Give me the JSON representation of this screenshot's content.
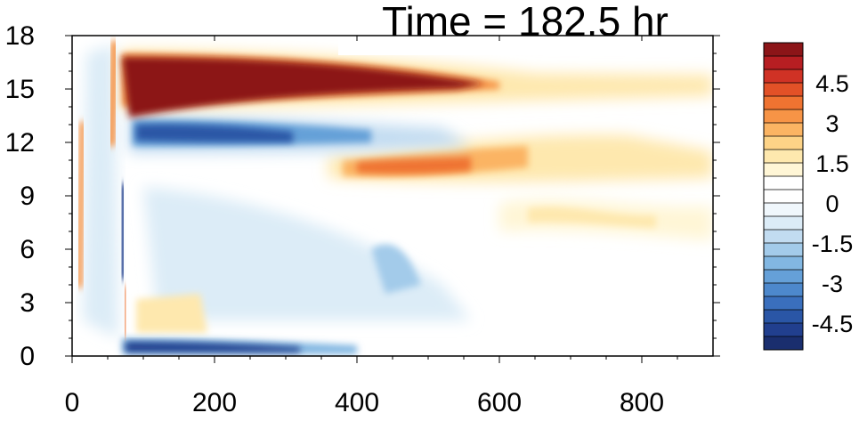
{
  "chart_data": {
    "type": "heatmap",
    "title": "Time = 182.5 hr",
    "xlabel": "",
    "ylabel": "",
    "xlim": [
      0,
      900
    ],
    "ylim": [
      0,
      18
    ],
    "x_ticks": [
      0,
      200,
      400,
      600,
      800
    ],
    "y_ticks": [
      0,
      3,
      6,
      9,
      12,
      15,
      18
    ],
    "colorbar": {
      "labels": [
        "4.5",
        "3",
        "1.5",
        "0",
        "-1.5",
        "-3",
        "-4.5"
      ],
      "label_values": [
        4.5,
        3,
        1.5,
        0,
        -1.5,
        -3,
        -4.5
      ],
      "levels": [
        -5.5,
        -5,
        -4.5,
        -4,
        -3.5,
        -3,
        -2.5,
        -2,
        -1.5,
        -1,
        -0.5,
        0,
        0.5,
        1,
        1.5,
        2,
        2.5,
        3,
        3.5,
        4,
        4.5,
        5,
        5.5
      ],
      "colors": [
        "#1a2e6e",
        "#213f8e",
        "#2a56a6",
        "#3a6fbd",
        "#4d88cc",
        "#65a0d8",
        "#82b7e2",
        "#a3cbea",
        "#c2dcf1",
        "#dcecf7",
        "#f0f7fc",
        "#ffffff",
        "#ffffff",
        "#fff6d6",
        "#fee8ae",
        "#fdd387",
        "#fbb463",
        "#f79446",
        "#ef7331",
        "#e25127",
        "#d03225",
        "#b71e22",
        "#8c1518"
      ]
    },
    "features": [
      {
        "name": "upper warm band",
        "x_range": [
          70,
          600
        ],
        "y_center": 15.5,
        "value": 5.5
      },
      {
        "name": "cold band",
        "x_range": [
          70,
          420
        ],
        "y_center": 12.4,
        "value": -4.5
      },
      {
        "name": "warm band",
        "x_range": [
          380,
          750
        ],
        "y_center": 10.5,
        "value": 3.0
      },
      {
        "name": "weak warm band",
        "x_range": [
          600,
          900
        ],
        "y_center": 7.6,
        "value": 1.2
      },
      {
        "name": "near-surface cold band",
        "x_range": [
          70,
          330
        ],
        "y_center": 0.6,
        "value": -5.0
      },
      {
        "name": "vertical front",
        "x_range": [
          60,
          80
        ],
        "y_range": [
          0,
          18
        ],
        "value": -5.0
      }
    ]
  }
}
